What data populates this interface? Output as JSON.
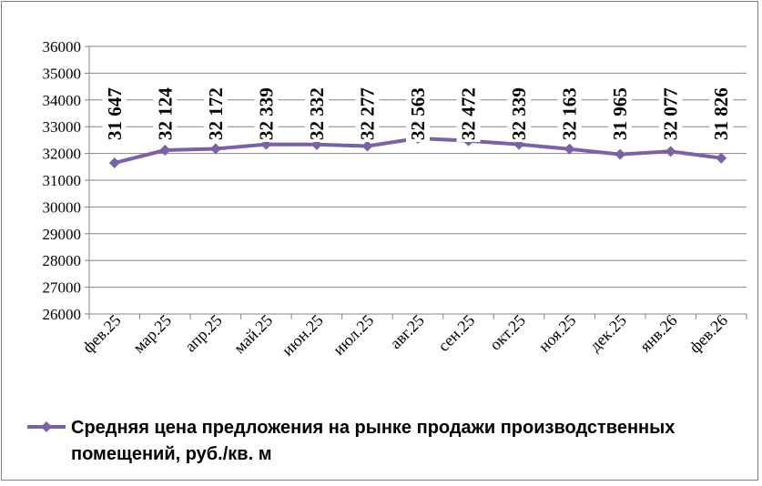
{
  "chart_data": {
    "type": "line",
    "categories": [
      "фев.25",
      "мар.25",
      "апр.25",
      "май.25",
      "июн.25",
      "июл.25",
      "авг.25",
      "сен.25",
      "окт.25",
      "ноя.25",
      "дек.25",
      "янв.26",
      "фев.26"
    ],
    "series": [
      {
        "name": "Средняя цена предложения на рынке продажи производственных помещений,  руб./кв. м",
        "values": [
          31647,
          32124,
          32172,
          32339,
          32332,
          32277,
          32563,
          32472,
          32339,
          32163,
          31965,
          32077,
          31826
        ],
        "data_labels": [
          "31 647",
          "32 124",
          "32 172",
          "32 339",
          "32 332",
          "32 277",
          "32 563",
          "32 472",
          "32 339",
          "32 163",
          "31 965",
          "32 077",
          "31 826"
        ]
      }
    ],
    "ylim": [
      26000,
      36000
    ],
    "yticks": [
      "26000",
      "27000",
      "28000",
      "29000",
      "30000",
      "31000",
      "32000",
      "33000",
      "34000",
      "35000",
      "36000"
    ],
    "grid": "horizontal",
    "legend_position": "bottom",
    "series_color": "#7b62a3"
  },
  "legend": {
    "line1": "Средняя цена предложения на рынке продажи производственных",
    "line2": "помещений,  руб./кв. м"
  }
}
